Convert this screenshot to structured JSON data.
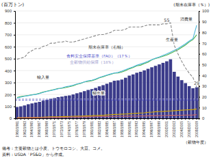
{
  "chart_data": {
    "type": "bar",
    "ylabel": "(百万トン)",
    "y2label": "(期末在庫率（％）)",
    "xlabel": "（穀物年度）",
    "notes": [
      "備考：主要穀物とは小麦、トウモロコシ、大豆、コメ。",
      "資料：USDA「PS&D」から作成。"
    ],
    "categories": [
      "1960/1961",
      null,
      "1962/1963",
      null,
      "1964/1965",
      null,
      "1966/1967",
      null,
      "1968/1969",
      null,
      "1970/1971",
      null,
      "1972/1973",
      null,
      "1974/1975",
      null,
      "1976/1977",
      null,
      "1978/1979",
      null,
      "1980/1981",
      null,
      "1982/1983",
      null,
      "1984/1985",
      null,
      "1986/1987",
      null,
      "1988/1989",
      null,
      "1990/1991",
      null,
      "1992/1993",
      null,
      "1994/1995",
      null,
      "1996/1997",
      null,
      "1998/1999",
      null,
      "2000/2001",
      null,
      "2002/2003",
      null,
      "2004/2005",
      null,
      "2006/2007",
      null,
      "2008/2009"
    ],
    "series": [
      {
        "type": "bar",
        "color": "#3b3b8a",
        "values": [
          95,
          100,
          108,
          118,
          125,
          132,
          138,
          148,
          156,
          165,
          170,
          178,
          182,
          188,
          192,
          200,
          210,
          218,
          228,
          238,
          245,
          255,
          268,
          278,
          290,
          302,
          315,
          318,
          325,
          340,
          358,
          368,
          382,
          390,
          402,
          415,
          428,
          440,
          452,
          465,
          478,
          495,
          390,
          350,
          320,
          295,
          270,
          252,
          260
        ]
      },
      {
        "type": "line",
        "name": "生産量",
        "color": "#4cb04f",
        "values": [
          175,
          183,
          188,
          192,
          197,
          202,
          210,
          220,
          228,
          235,
          242,
          250,
          252,
          258,
          265,
          272,
          285,
          292,
          305,
          310,
          315,
          325,
          340,
          348,
          360,
          368,
          378,
          380,
          388,
          400,
          415,
          425,
          440,
          445,
          458,
          470,
          490,
          502,
          510,
          520,
          530,
          545,
          560,
          575,
          595,
          615,
          640,
          660,
          700
        ]
      },
      {
        "type": "line",
        "name": "消費量",
        "color": "#4db8db",
        "values": [
          170,
          178,
          185,
          190,
          196,
          200,
          208,
          218,
          226,
          232,
          240,
          248,
          255,
          265,
          270,
          278,
          288,
          295,
          305,
          315,
          320,
          330,
          342,
          352,
          362,
          372,
          380,
          385,
          395,
          408,
          420,
          432,
          445,
          455,
          465,
          478,
          492,
          505,
          515,
          528,
          540,
          555,
          570,
          585,
          605,
          625,
          648,
          668,
          780
        ]
      },
      {
        "type": "line",
        "name": "輸入量",
        "color": "#d4a800",
        "values": [
          5,
          6,
          6,
          7,
          7,
          8,
          9,
          10,
          11,
          12,
          12,
          13,
          14,
          15,
          16,
          17,
          18,
          19,
          20,
          21,
          22,
          24,
          25,
          26,
          28,
          30,
          32,
          33,
          35,
          36,
          38,
          40,
          42,
          44,
          46,
          50,
          52,
          55,
          57,
          58,
          60,
          62,
          64,
          66,
          68,
          70,
          72,
          74,
          78
        ]
      },
      {
        "type": "line",
        "name": "輸出量",
        "color": "#cc6666",
        "values": [
          3,
          4,
          4,
          5,
          5,
          5,
          6,
          6,
          7,
          7,
          8,
          8,
          9,
          9,
          10,
          10,
          11,
          11,
          12,
          12,
          13,
          14,
          14,
          15,
          15,
          16,
          16,
          17,
          17,
          18,
          18,
          19,
          19,
          20,
          20,
          21,
          22,
          22,
          23,
          23,
          24,
          25,
          25,
          26,
          26,
          27,
          27,
          28,
          30
        ]
      },
      {
        "type": "line",
        "name": "期末在庫率（右軸）",
        "color": "#888888",
        "axis": "y2",
        "line_style": "dashed",
        "values": [
          55,
          56,
          57,
          61,
          63,
          65,
          65,
          67,
          68,
          70,
          70,
          71,
          71,
          72,
          71,
          71,
          72,
          73,
          74,
          75,
          76,
          77,
          78,
          78,
          79,
          80,
          82,
          82,
          82,
          83,
          85,
          85,
          85,
          85,
          86,
          87,
          87,
          87,
          87,
          88,
          88,
          89,
          68,
          60,
          53,
          47,
          42,
          38,
          29
        ]
      }
    ],
    "reference_lines": [
      {
        "name": "食料安全保障基準（FAO）（17％）",
        "value": 17,
        "color": "#5555cc",
        "axis": "y2",
        "line_style": "dashed"
      },
      {
        "name": "全穀物供給保障（18％）",
        "value": 18,
        "color": "#9999cc",
        "axis": "y2",
        "line_style": "dashed"
      }
    ],
    "annotations": [
      {
        "text": "55",
        "x": "2000/2001"
      },
      {
        "text": "29",
        "x": "2008/2009"
      }
    ],
    "ylim": [
      0,
      900
    ],
    "yticks": [
      0,
      100,
      200,
      300,
      400,
      500,
      600,
      700,
      800,
      900
    ],
    "y2lim": [
      0,
      100
    ],
    "y2ticks": [
      0,
      10,
      20,
      30,
      40,
      50,
      60,
      70,
      80,
      90,
      100
    ],
    "grid": true
  }
}
